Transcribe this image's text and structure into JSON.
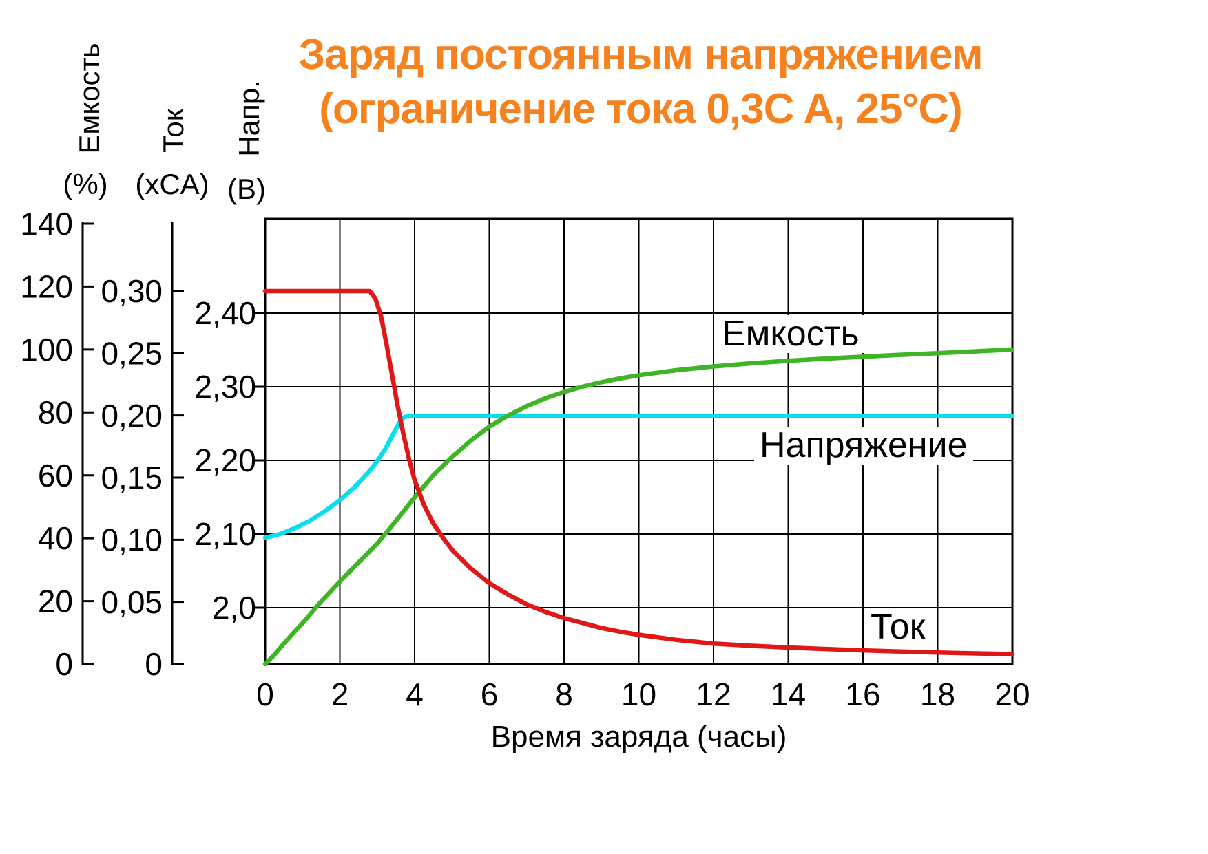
{
  "title": {
    "line1": "Заряд постоянным напряжением",
    "line2": "(ограничение тока 0,3C A, 25°C)",
    "color": "#F5821F"
  },
  "axes_headers": {
    "capacity": {
      "name": "Емкость",
      "unit": "(%)"
    },
    "current": {
      "name": "Ток",
      "unit": "(xCA)"
    },
    "voltage": {
      "name": "Напр.",
      "unit": "(B)"
    }
  },
  "chart_data": {
    "type": "line",
    "title": "Заряд постоянным напряжением (ограничение тока 0,3C A, 25°C)",
    "xlabel": "Время заряда (часы)",
    "grid": true,
    "x_axis": {
      "min": 0,
      "max": 20,
      "tick_step": 2,
      "tick_labels": [
        "0",
        "2",
        "4",
        "6",
        "8",
        "10",
        "12",
        "14",
        "16",
        "18",
        "20"
      ],
      "tick_values": [
        0,
        2,
        4,
        6,
        8,
        10,
        12,
        14,
        16,
        18,
        20
      ],
      "grid_hours": [
        2,
        4,
        6,
        8,
        10,
        12,
        14,
        16,
        18
      ]
    },
    "y_axes": [
      {
        "id": "capacity",
        "label": "Емкость",
        "unit": "%",
        "min": 0,
        "max": 140,
        "tick_labels": [
          "140",
          "120",
          "100",
          "80",
          "60",
          "40",
          "20",
          "0"
        ],
        "tick_values": [
          140,
          120,
          100,
          80,
          60,
          40,
          20,
          0
        ]
      },
      {
        "id": "current",
        "label": "Ток",
        "unit": "xCA",
        "min": 0,
        "max": 0.3,
        "tick_labels": [
          "0,30",
          "0,25",
          "0,20",
          "0,15",
          "0,10",
          "0,05",
          "0"
        ],
        "tick_values": [
          0.3,
          0.25,
          0.2,
          0.15,
          0.1,
          0.05,
          0
        ]
      },
      {
        "id": "voltage",
        "label": "Напряжение",
        "unit": "B",
        "tick_labels": [
          "2,40",
          "2,30",
          "2,20",
          "2,10",
          "2,0"
        ],
        "tick_values": [
          2.4,
          2.3,
          2.2,
          2.1,
          2.0
        ],
        "grid_values": [
          2.4,
          2.3,
          2.2,
          2.1,
          2.0
        ]
      }
    ],
    "series": [
      {
        "name": "Напряжение",
        "axis": "voltage",
        "color": "#0ADEEE",
        "points": [
          [
            0,
            2.095
          ],
          [
            0.4,
            2.1
          ],
          [
            0.8,
            2.108
          ],
          [
            1.2,
            2.118
          ],
          [
            1.6,
            2.131
          ],
          [
            2,
            2.146
          ],
          [
            2.4,
            2.164
          ],
          [
            2.8,
            2.186
          ],
          [
            3,
            2.199
          ],
          [
            3.2,
            2.214
          ],
          [
            3.4,
            2.233
          ],
          [
            3.5,
            2.243
          ],
          [
            3.6,
            2.252
          ],
          [
            3.7,
            2.258
          ],
          [
            3.8,
            2.26
          ],
          [
            4,
            2.26
          ],
          [
            20,
            2.26
          ]
        ]
      },
      {
        "name": "Емкость",
        "axis": "capacity",
        "color": "#3FB424",
        "points": [
          [
            0,
            0
          ],
          [
            0.25,
            3
          ],
          [
            0.5,
            6.5
          ],
          [
            0.75,
            9.8
          ],
          [
            1,
            13
          ],
          [
            1.5,
            19.9
          ],
          [
            2,
            26.2
          ],
          [
            2.5,
            32.3
          ],
          [
            3,
            38.3
          ],
          [
            3.5,
            45.5
          ],
          [
            4,
            53
          ],
          [
            4.5,
            60
          ],
          [
            5,
            65.8
          ],
          [
            5.5,
            71
          ],
          [
            6,
            75.5
          ],
          [
            6.5,
            79
          ],
          [
            7,
            82
          ],
          [
            7.5,
            84.5
          ],
          [
            8,
            86.5
          ],
          [
            8.5,
            88.2
          ],
          [
            9,
            89.6
          ],
          [
            9.5,
            90.8
          ],
          [
            10,
            91.8
          ],
          [
            11,
            93.4
          ],
          [
            12,
            94.6
          ],
          [
            13,
            95.6
          ],
          [
            14,
            96.4
          ],
          [
            15,
            97.1
          ],
          [
            16,
            97.7
          ],
          [
            17,
            98.3
          ],
          [
            18,
            98.8
          ],
          [
            19,
            99.4
          ],
          [
            20,
            100
          ]
        ]
      },
      {
        "name": "Ток",
        "axis": "current",
        "color": "#E01717",
        "points": [
          [
            0,
            0.3
          ],
          [
            2.8,
            0.3
          ],
          [
            2.95,
            0.294
          ],
          [
            3.1,
            0.28
          ],
          [
            3.25,
            0.257
          ],
          [
            3.4,
            0.232
          ],
          [
            3.55,
            0.207
          ],
          [
            3.7,
            0.185
          ],
          [
            3.85,
            0.165
          ],
          [
            4,
            0.148
          ],
          [
            4.25,
            0.128
          ],
          [
            4.5,
            0.113
          ],
          [
            4.75,
            0.102
          ],
          [
            5,
            0.092
          ],
          [
            5.5,
            0.077
          ],
          [
            6,
            0.065
          ],
          [
            6.5,
            0.056
          ],
          [
            7,
            0.048
          ],
          [
            7.5,
            0.042
          ],
          [
            8,
            0.037
          ],
          [
            8.5,
            0.033
          ],
          [
            9,
            0.029
          ],
          [
            9.5,
            0.026
          ],
          [
            10,
            0.0235
          ],
          [
            11,
            0.0195
          ],
          [
            12,
            0.0165
          ],
          [
            13,
            0.0147
          ],
          [
            14,
            0.0133
          ],
          [
            15,
            0.0121
          ],
          [
            16,
            0.011
          ],
          [
            17,
            0.0101
          ],
          [
            18,
            0.0093
          ],
          [
            19,
            0.0086
          ],
          [
            20,
            0.008
          ]
        ]
      }
    ]
  }
}
